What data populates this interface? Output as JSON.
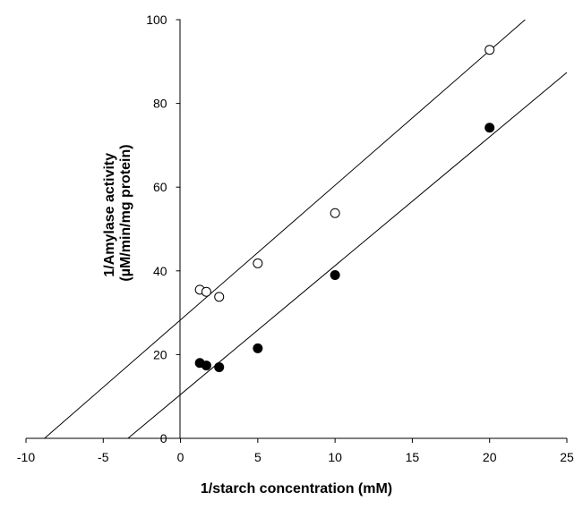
{
  "chart_data": {
    "type": "scatter",
    "title": "",
    "xlabel": "1/starch concentration (mM)",
    "ylabel_lines": [
      "1/Amylase activity",
      "(µM/min/mg protein)"
    ],
    "xlim": [
      -10,
      25
    ],
    "ylim": [
      0,
      100
    ],
    "xticks": [
      -10,
      -5,
      0,
      5,
      10,
      15,
      20,
      25
    ],
    "yticks": [
      0,
      20,
      40,
      60,
      80,
      100
    ],
    "grid": false,
    "legend": "none",
    "series": [
      {
        "marker": "open-circle",
        "points": [
          {
            "x": 1.25,
            "y": 35.5
          },
          {
            "x": 1.67,
            "y": 35.0
          },
          {
            "x": 2.5,
            "y": 33.8
          },
          {
            "x": 5,
            "y": 41.8
          },
          {
            "x": 10,
            "y": 53.8
          },
          {
            "x": 20,
            "y": 92.8
          }
        ],
        "fit_line": {
          "x_start": -8.8,
          "y_start": 0,
          "x_end": 22.3,
          "y_end": 100
        }
      },
      {
        "marker": "filled-circle",
        "points": [
          {
            "x": 1.25,
            "y": 18.0
          },
          {
            "x": 1.67,
            "y": 17.4
          },
          {
            "x": 2.5,
            "y": 17.0
          },
          {
            "x": 5,
            "y": 21.5
          },
          {
            "x": 10,
            "y": 39.0
          },
          {
            "x": 20,
            "y": 74.2
          }
        ],
        "fit_line": {
          "x_start": -3.4,
          "y_start": 0,
          "x_end": 25,
          "y_end": 87.4
        }
      }
    ]
  }
}
